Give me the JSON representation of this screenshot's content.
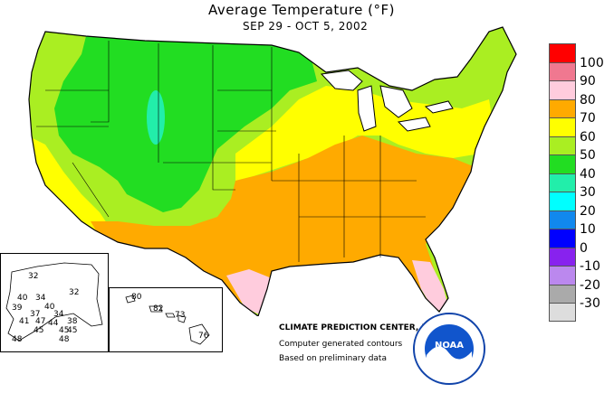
{
  "header": {
    "title": "Average Temperature (°F)",
    "subtitle": "SEP 29 - OCT  5, 2002"
  },
  "legend": {
    "items": [
      {
        "label": "100",
        "color": "#ff0000"
      },
      {
        "label": "90",
        "color": "#f07890"
      },
      {
        "label": "80",
        "color": "#ffccdd"
      },
      {
        "label": "70",
        "color": "#ffaa00"
      },
      {
        "label": "60",
        "color": "#ffff00"
      },
      {
        "label": "50",
        "color": "#aaee22"
      },
      {
        "label": "40",
        "color": "#22dd22"
      },
      {
        "label": "30",
        "color": "#22eeaa"
      },
      {
        "label": "20",
        "color": "#00ffff"
      },
      {
        "label": "10",
        "color": "#1188ee"
      },
      {
        "label": "0",
        "color": "#0000ff"
      },
      {
        "label": "-10",
        "color": "#8822ee"
      },
      {
        "label": "-20",
        "color": "#bb88ee"
      },
      {
        "label": "-30",
        "color": "#aaaaaa"
      },
      {
        "label": "",
        "color": "#dddddd"
      }
    ]
  },
  "credits": {
    "org": "CLIMATE PREDICTION CENTER, NOAA",
    "line1": "Computer generated contours",
    "line2": "Based on preliminary data"
  },
  "alaska": {
    "stations": [
      "32",
      "32",
      "40",
      "34",
      "40",
      "39",
      "37",
      "34",
      "41",
      "47",
      "44",
      "38",
      "45",
      "45",
      "48",
      "45",
      "48"
    ]
  },
  "hawaii": {
    "stations": [
      "80",
      "82",
      "73",
      "76"
    ]
  },
  "logo": {
    "text": "NOAA"
  }
}
